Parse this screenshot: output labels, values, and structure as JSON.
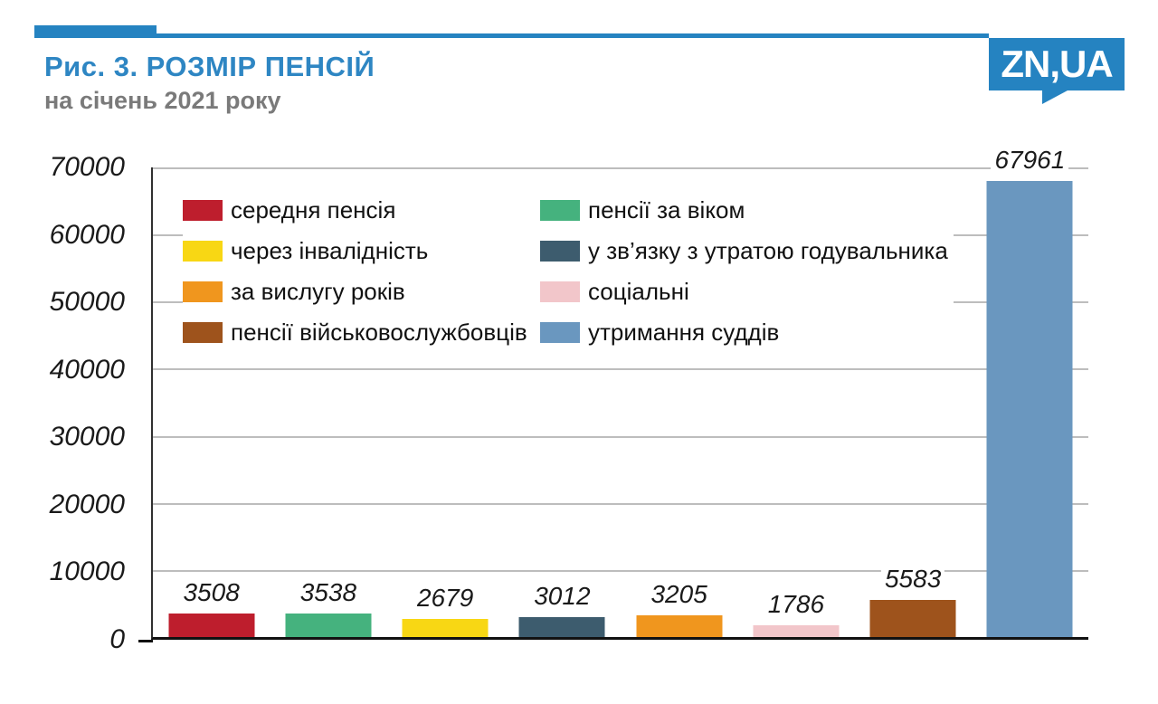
{
  "header": {
    "figure_title": "Рис. 3. РОЗМІР ПЕНСІЙ",
    "subtitle": "на січень 2021 року",
    "logo_text": "ZN,UA",
    "accent_color": "#2583c1",
    "title_color": "#2e86c3",
    "subtitle_color": "#7a7a7a"
  },
  "chart_data": {
    "type": "bar",
    "title": "Рис. 3. РОЗМІР ПЕНСІЙ",
    "subtitle": "на січень 2021 року",
    "categories": [
      "середня пенсія",
      "пенсії за віком",
      "через інвалідність",
      "у зв’язку з утратою годувальника",
      "за вислугу років",
      "соціальні",
      "пенсії військовослужбовців",
      "утримання суддів"
    ],
    "values": [
      3508,
      3538,
      2679,
      3012,
      3205,
      1786,
      5583,
      67961
    ],
    "colors": [
      "#be1e2d",
      "#45b27e",
      "#f8d714",
      "#3d5c6e",
      "#f0961e",
      "#f2c6ca",
      "#9e531c",
      "#6a97bf"
    ],
    "ylim": [
      0,
      70000
    ],
    "yticks": [
      0,
      10000,
      20000,
      30000,
      40000,
      50000,
      60000,
      70000
    ],
    "grid": true,
    "grid_color": "#bdbdbd",
    "axis_color": "#111111",
    "value_labels": true,
    "value_label_style": "italic",
    "legend_position": "top-left inside plot, two columns",
    "xlabel": "",
    "ylabel": ""
  }
}
